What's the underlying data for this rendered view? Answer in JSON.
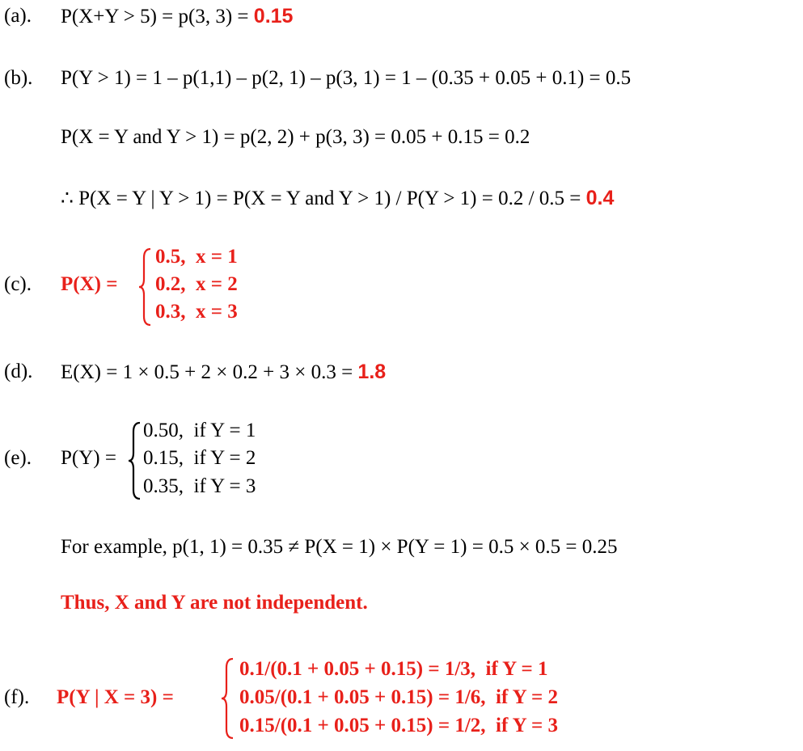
{
  "answer_color": "#e8201a",
  "a": {
    "label": "(a).",
    "text": "P(X+Y > 5) = p(3, 3) = ",
    "answer": "0.15"
  },
  "b": {
    "label": "(b).",
    "lines": [
      "P(Y > 1) = 1 – p(1,1) – p(2, 1) – p(3, 1) = 1 – (0.35 + 0.05 + 0.1) = 0.5",
      "P(X = Y and Y > 1) = p(2, 2) + p(3, 3) = 0.05 + 0.15 = 0.2",
      "∴ P(X = Y | Y > 1) = P(X = Y and Y > 1) / P(Y > 1) = 0.2 / 0.5 = "
    ],
    "answer": "0.4"
  },
  "c": {
    "label": "(c).",
    "lhs": "P(X) =",
    "cases": [
      "0.5,  x = 1",
      "0.2,  x = 2",
      "0.3,  x = 3"
    ]
  },
  "d": {
    "label": "(d).",
    "text": "E(X) = 1 × 0.5 + 2 × 0.2 + 3 × 0.3 = ",
    "answer": "1.8"
  },
  "e": {
    "label": "(e).",
    "lhs": "P(Y) =",
    "cases": [
      "0.50,  if Y = 1",
      "0.15,  if Y = 2",
      "0.35,  if Y = 3"
    ],
    "example": "For example, p(1, 1) = 0.35 ≠ P(X = 1) × P(Y = 1) = 0.5 × 0.5 = 0.25",
    "conclusion": "Thus, X and Y are not independent."
  },
  "f": {
    "label": "(f).",
    "lhs": "P(Y | X = 3) =",
    "cases": [
      "0.1/(0.1 + 0.05 + 0.15) = 1/3,  if Y = 1",
      "0.05/(0.1 + 0.05 + 0.15) = 1/6,  if Y = 2",
      "0.15/(0.1 + 0.05 + 0.15) = 1/2,  if Y = 3"
    ]
  }
}
